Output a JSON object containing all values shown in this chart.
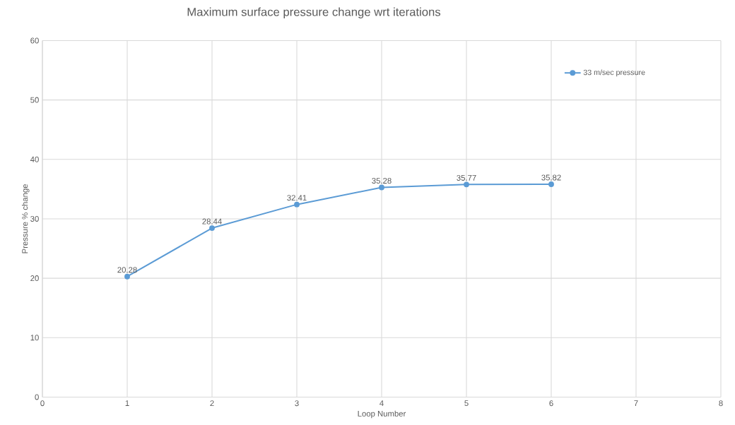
{
  "chart_data": {
    "type": "line",
    "title": "Maximum surface pressure change wrt iterations",
    "xlabel": "Loop Number",
    "ylabel": "Pressure % change",
    "x": [
      1,
      2,
      3,
      4,
      5,
      6
    ],
    "series": [
      {
        "name": "33 m/sec pressure",
        "color": "#5b9bd5",
        "values": [
          20.28,
          28.44,
          32.41,
          35.28,
          35.77,
          35.82
        ]
      }
    ],
    "xlim": [
      0,
      8
    ],
    "xticks": [
      0,
      1,
      2,
      3,
      4,
      5,
      6,
      7,
      8
    ],
    "ylim": [
      0,
      60
    ],
    "yticks": [
      0,
      10,
      20,
      30,
      40,
      50,
      60
    ],
    "grid": true,
    "legend": "top right",
    "marker": "circle",
    "line_style": "solid",
    "data_labels": true
  }
}
